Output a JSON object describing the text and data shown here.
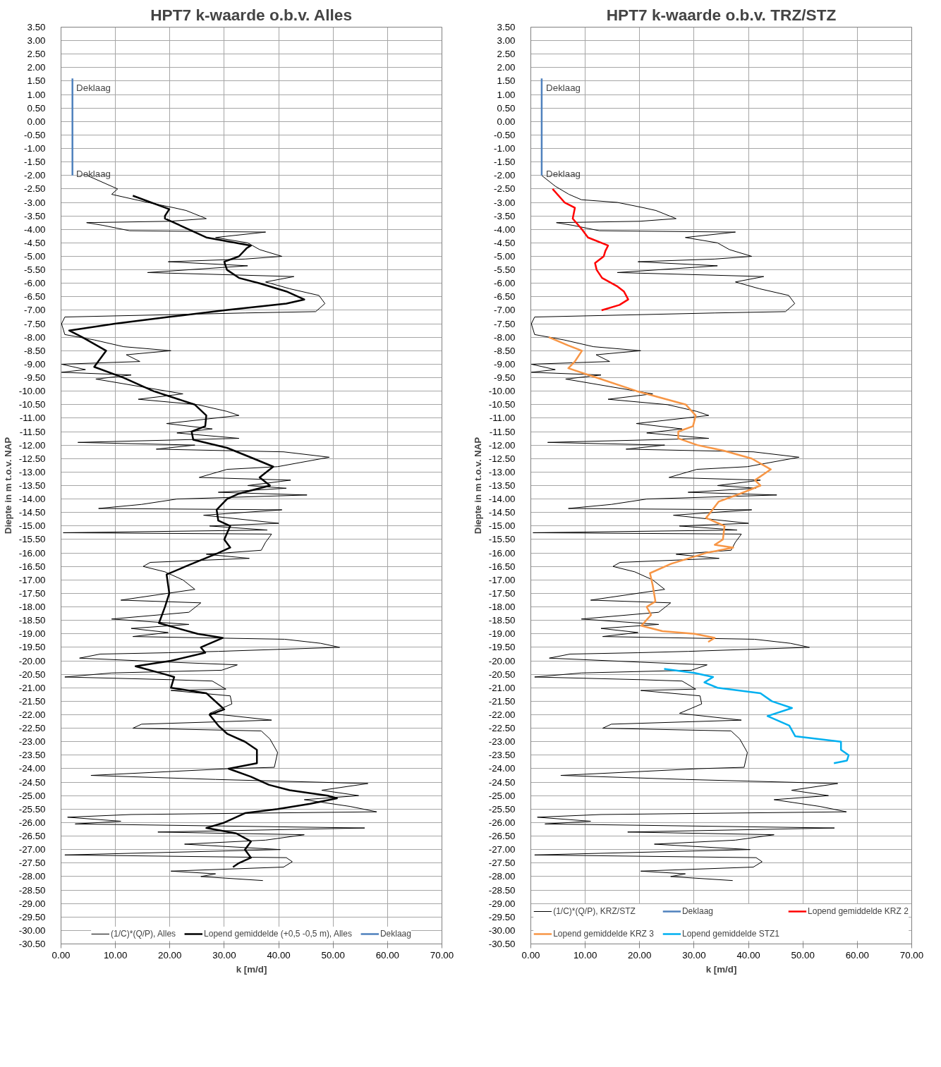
{
  "chart_data": [
    {
      "type": "line",
      "title": "HPT7 k-waarde o.b.v. Alles",
      "xlabel": "k [m/d]",
      "ylabel": "Diepte in m t.o.v. NAP",
      "grid": true,
      "legend": "bottom",
      "line_style": "solid",
      "xlim": [
        0,
        70
      ],
      "ylim": [
        -30.5,
        3.5
      ],
      "xticks": [
        {
          "value": 0,
          "label": "0.00"
        },
        {
          "value": 10,
          "label": "10.00"
        },
        {
          "value": 20,
          "label": "20.00"
        },
        {
          "value": 30,
          "label": "30.00"
        },
        {
          "value": 40,
          "label": "40.00"
        },
        {
          "value": 50,
          "label": "50.00"
        },
        {
          "value": 60,
          "label": "60.00"
        },
        {
          "value": 70,
          "label": "70.00"
        }
      ],
      "yticks": [
        {
          "value": 3.5,
          "label": "3.50"
        },
        {
          "value": 3,
          "label": "3.00"
        },
        {
          "value": 2.5,
          "label": "2.50"
        },
        {
          "value": 2,
          "label": "2.00"
        },
        {
          "value": 1.5,
          "label": "1.50"
        },
        {
          "value": 1,
          "label": "1.00"
        },
        {
          "value": 0.5,
          "label": "0.50"
        },
        {
          "value": 0,
          "label": "0.00"
        },
        {
          "value": -0.5,
          "label": "-0.50"
        },
        {
          "value": -1,
          "label": "-1.00"
        },
        {
          "value": -1.5,
          "label": "-1.50"
        },
        {
          "value": -2,
          "label": "-2.00"
        },
        {
          "value": -2.5,
          "label": "-2.50"
        },
        {
          "value": -3,
          "label": "-3.00"
        },
        {
          "value": -3.5,
          "label": "-3.50"
        },
        {
          "value": -4,
          "label": "-4.00"
        },
        {
          "value": -4.5,
          "label": "-4.50"
        },
        {
          "value": -5,
          "label": "-5.00"
        },
        {
          "value": -5.5,
          "label": "-5.50"
        },
        {
          "value": -6,
          "label": "-6.00"
        },
        {
          "value": -6.5,
          "label": "-6.50"
        },
        {
          "value": -7,
          "label": "-7.00"
        },
        {
          "value": -7.5,
          "label": "-7.50"
        },
        {
          "value": -8,
          "label": "-8.00"
        },
        {
          "value": -8.5,
          "label": "-8.50"
        },
        {
          "value": -9,
          "label": "-9.00"
        },
        {
          "value": -9.5,
          "label": "-9.50"
        },
        {
          "value": -10,
          "label": "-10.00"
        },
        {
          "value": -10.5,
          "label": "-10.50"
        },
        {
          "value": -11,
          "label": "-11.00"
        },
        {
          "value": -11.5,
          "label": "-11.50"
        },
        {
          "value": -12,
          "label": "-12.00"
        },
        {
          "value": -12.5,
          "label": "-12.50"
        },
        {
          "value": -13,
          "label": "-13.00"
        },
        {
          "value": -13.5,
          "label": "-13.50"
        },
        {
          "value": -14,
          "label": "-14.00"
        },
        {
          "value": -14.5,
          "label": "-14.50"
        },
        {
          "value": -15,
          "label": "-15.00"
        },
        {
          "value": -15.5,
          "label": "-15.50"
        },
        {
          "value": -16,
          "label": "-16.00"
        },
        {
          "value": -16.5,
          "label": "-16.50"
        },
        {
          "value": -17,
          "label": "-17.00"
        },
        {
          "value": -17.5,
          "label": "-17.50"
        },
        {
          "value": -18,
          "label": "-18.00"
        },
        {
          "value": -18.5,
          "label": "-18.50"
        },
        {
          "value": -19,
          "label": "-19.00"
        },
        {
          "value": -19.5,
          "label": "-19.50"
        },
        {
          "value": -20,
          "label": "-20.00"
        },
        {
          "value": -20.5,
          "label": "-20.50"
        },
        {
          "value": -21,
          "label": "-21.00"
        },
        {
          "value": -21.5,
          "label": "-21.50"
        },
        {
          "value": -22,
          "label": "-22.00"
        },
        {
          "value": -22.5,
          "label": "-22.50"
        },
        {
          "value": -23,
          "label": "-23.00"
        },
        {
          "value": -23.5,
          "label": "-23.50"
        },
        {
          "value": -24,
          "label": "-24.00"
        },
        {
          "value": -24.5,
          "label": "-24.50"
        },
        {
          "value": -25,
          "label": "-25.00"
        },
        {
          "value": -25.5,
          "label": "-25.50"
        },
        {
          "value": -26,
          "label": "-26.00"
        },
        {
          "value": -26.5,
          "label": "-26.50"
        },
        {
          "value": -27,
          "label": "-27.00"
        },
        {
          "value": -27.5,
          "label": "-27.50"
        },
        {
          "value": -28,
          "label": "-28.00"
        },
        {
          "value": -28.5,
          "label": "-28.50"
        },
        {
          "value": -29,
          "label": "-29.00"
        },
        {
          "value": -29.5,
          "label": "-29.50"
        },
        {
          "value": -30,
          "label": "-30.00"
        },
        {
          "value": -30.5,
          "label": "-30.50"
        }
      ],
      "annotations": [
        "Deklaag",
        "Deklaag"
      ],
      "series": [
        {
          "name": "(1/C)*(Q/P), Alles",
          "color": "#000000",
          "x": [
            4.8,
            10.4,
            9.3,
            15.9,
            20.8,
            23,
            26.7,
            20,
            4.7,
            7.7,
            12.6,
            37.6,
            28.4,
            34.3,
            36.5,
            40.6,
            33.8,
            19.7,
            34.3,
            15.9,
            42.8,
            37.6,
            42,
            47.4,
            48.5,
            46.8,
            33.8,
            0.7,
            0.1,
            0.7,
            6.1,
            11.5,
            20.2,
            12,
            14.5,
            0.1,
            4.5,
            0.1,
            12.9,
            6.4,
            22.4,
            14.2,
            25.1,
            30.5,
            32.7,
            19.4,
            27.8,
            21.3,
            32.7,
            3.1,
            24.6,
            17.5,
            40.9,
            49.3,
            39.8,
            30.5,
            25.4,
            42.2,
            34.3,
            41.4,
            28.9,
            45.2,
            21.3,
            14.8,
            6.9,
            40.6,
            26.2,
            40,
            27.3,
            37.9,
            0.4,
            38.7,
            37.6,
            36.8,
            26.7,
            34.6,
            16.4,
            15.1,
            19.1,
            22.4,
            24.6,
            11,
            25.7,
            23.5,
            9.3,
            23.5,
            12.9,
            19.7,
            13.2,
            41.1,
            47.7,
            51.2,
            28.9,
            19.7,
            7.2,
            3.4,
            20.2,
            32.4,
            29.5,
            9.3,
            0.7,
            20.2,
            27.8,
            30.3,
            20.2,
            31.1,
            31.4,
            27.3,
            38.7,
            14.8,
            13.2,
            36.8,
            38.4,
            39.8,
            39.2,
            30.8,
            5.5,
            28.4,
            56.4,
            47.9,
            54.7,
            44.7,
            53.1,
            58,
            12.9,
            1.2,
            11,
            2.6,
            55.8,
            17.8,
            44.7,
            37.6,
            22.7,
            40.3,
            0.7,
            41.4,
            42.5,
            40.9,
            20.2,
            28.4,
            25.7,
            37.1
          ],
          "values": [
            -2.0,
            -2.5,
            -2.7,
            -3.0,
            -3.2,
            -3.3,
            -3.6,
            -3.7,
            -3.75,
            -3.85,
            -4.05,
            -4.1,
            -4.3,
            -4.5,
            -4.75,
            -5.0,
            -5.1,
            -5.2,
            -5.35,
            -5.6,
            -5.75,
            -5.95,
            -6.2,
            -6.45,
            -6.75,
            -7.05,
            -7.1,
            -7.25,
            -7.5,
            -7.9,
            -8.1,
            -8.35,
            -8.5,
            -8.65,
            -8.9,
            -9.0,
            -9.2,
            -9.3,
            -9.4,
            -9.55,
            -10.1,
            -10.3,
            -10.5,
            -10.75,
            -10.9,
            -11.2,
            -11.4,
            -11.55,
            -11.75,
            -11.9,
            -12.0,
            -12.15,
            -12.25,
            -12.45,
            -12.8,
            -12.9,
            -13.2,
            -13.3,
            -13.5,
            -13.6,
            -13.75,
            -13.85,
            -14.0,
            -14.2,
            -14.35,
            -14.4,
            -14.6,
            -14.9,
            -15.0,
            -15.15,
            -15.25,
            -15.3,
            -15.6,
            -15.9,
            -16.05,
            -16.2,
            -16.35,
            -16.5,
            -16.7,
            -17.0,
            -17.35,
            -17.75,
            -17.85,
            -18.2,
            -18.45,
            -18.65,
            -18.8,
            -18.95,
            -19.1,
            -19.2,
            -19.35,
            -19.5,
            -19.65,
            -19.7,
            -19.75,
            -19.9,
            -20.05,
            -20.15,
            -20.35,
            -20.45,
            -20.6,
            -20.7,
            -20.75,
            -21.05,
            -21.1,
            -21.3,
            -21.6,
            -21.95,
            -22.2,
            -22.35,
            -22.5,
            -22.6,
            -22.9,
            -23.4,
            -23.95,
            -24.0,
            -24.25,
            -24.4,
            -24.55,
            -24.8,
            -25.0,
            -25.15,
            -25.4,
            -25.6,
            -25.7,
            -25.8,
            -25.95,
            -26.05,
            -26.2,
            -26.35,
            -26.45,
            -26.65,
            -26.8,
            -27.0,
            -27.2,
            -27.3,
            -27.45,
            -27.65,
            -27.8,
            -27.9,
            -28.0,
            -28.15
          ]
        },
        {
          "name": "Lopend gemiddelde (+0,5 -0,5 m), Alles",
          "color": "#000000",
          "x": [
            13.2,
            19.9,
            19.1,
            19.1,
            23.5,
            26.7,
            34.9,
            34.1,
            32.7,
            30,
            30.5,
            32.7,
            36.5,
            41.4,
            44.7,
            41.4,
            30,
            19.7,
            9.9,
            1.5,
            3.9,
            8.3,
            7.2,
            6.1,
            11.5,
            17,
            24.6,
            26.7,
            26.5,
            24,
            24.3,
            30.5,
            35.4,
            39,
            36.5,
            38.4,
            32.7,
            30.5,
            28.6,
            28.9,
            31.1,
            30,
            31.1,
            28.9,
            22.9,
            19.4,
            19.9,
            19.1,
            18,
            25.1,
            29.7,
            25.7,
            26.5,
            20.2,
            13.7,
            19.1,
            20.8,
            20.2,
            26.7,
            28.9,
            30,
            27.3,
            28.9,
            30.5,
            33.8,
            36,
            36,
            30.8,
            34.9,
            38.2,
            42,
            49,
            50.7,
            45.8,
            39.8,
            33.8,
            30,
            26.7,
            32.2,
            34.9,
            33.8,
            34.9,
            32.7,
            31.6
          ],
          "values": [
            -2.75,
            -3.25,
            -3.5,
            -3.6,
            -4.0,
            -4.3,
            -4.6,
            -4.7,
            -5.0,
            -5.2,
            -5.5,
            -5.8,
            -6.0,
            -6.3,
            -6.6,
            -6.75,
            -7.0,
            -7.25,
            -7.5,
            -7.75,
            -8.0,
            -8.5,
            -8.8,
            -9.1,
            -9.5,
            -10.0,
            -10.5,
            -10.9,
            -11.3,
            -11.5,
            -11.8,
            -12.1,
            -12.5,
            -12.8,
            -13.2,
            -13.5,
            -13.8,
            -14.0,
            -14.4,
            -14.8,
            -15.0,
            -15.5,
            -15.8,
            -16.0,
            -16.5,
            -16.8,
            -17.5,
            -18.0,
            -18.6,
            -19.0,
            -19.15,
            -19.5,
            -19.7,
            -20.0,
            -20.2,
            -20.5,
            -20.6,
            -21.0,
            -21.2,
            -21.6,
            -21.8,
            -22.0,
            -22.4,
            -22.7,
            -23.0,
            -23.3,
            -23.8,
            -24.0,
            -24.3,
            -24.6,
            -24.8,
            -25.0,
            -25.1,
            -25.3,
            -25.5,
            -25.65,
            -26.0,
            -26.2,
            -26.4,
            -26.7,
            -27.0,
            -27.3,
            -27.5,
            -27.65
          ]
        },
        {
          "name": "Deklaag",
          "color": "#4f81bd",
          "x": [
            2.1,
            2.1
          ],
          "values": [
            1.6,
            -2.0
          ]
        }
      ]
    },
    {
      "type": "line",
      "title": "HPT7 k-waarde o.b.v. TRZ/STZ",
      "xlabel": "k [m/d]",
      "ylabel": "Diepte in m t.o.v. NAP",
      "grid": true,
      "legend": "bottom",
      "line_style": "solid",
      "xlim": [
        0,
        70
      ],
      "ylim": [
        -30.5,
        3.5
      ],
      "xticks": [
        {
          "value": 0,
          "label": "0.00"
        },
        {
          "value": 10,
          "label": "10.00"
        },
        {
          "value": 20,
          "label": "20.00"
        },
        {
          "value": 30,
          "label": "30.00"
        },
        {
          "value": 40,
          "label": "40.00"
        },
        {
          "value": 50,
          "label": "50.00"
        },
        {
          "value": 60,
          "label": "60.00"
        },
        {
          "value": 70,
          "label": "70.00"
        }
      ],
      "yticks": [
        {
          "value": 3.5,
          "label": "3.50"
        },
        {
          "value": 3,
          "label": "3.00"
        },
        {
          "value": 2.5,
          "label": "2.50"
        },
        {
          "value": 2,
          "label": "2.00"
        },
        {
          "value": 1.5,
          "label": "1.50"
        },
        {
          "value": 1,
          "label": "1.00"
        },
        {
          "value": 0.5,
          "label": "0.50"
        },
        {
          "value": 0,
          "label": "0.00"
        },
        {
          "value": -0.5,
          "label": "-0.50"
        },
        {
          "value": -1,
          "label": "-1.00"
        },
        {
          "value": -1.5,
          "label": "-1.50"
        },
        {
          "value": -2,
          "label": "-2.00"
        },
        {
          "value": -2.5,
          "label": "-2.50"
        },
        {
          "value": -3,
          "label": "-3.00"
        },
        {
          "value": -3.5,
          "label": "-3.50"
        },
        {
          "value": -4,
          "label": "-4.00"
        },
        {
          "value": -4.5,
          "label": "-4.50"
        },
        {
          "value": -5,
          "label": "-5.00"
        },
        {
          "value": -5.5,
          "label": "-5.50"
        },
        {
          "value": -6,
          "label": "-6.00"
        },
        {
          "value": -6.5,
          "label": "-6.50"
        },
        {
          "value": -7,
          "label": "-7.00"
        },
        {
          "value": -7.5,
          "label": "-7.50"
        },
        {
          "value": -8,
          "label": "-8.00"
        },
        {
          "value": -8.5,
          "label": "-8.50"
        },
        {
          "value": -9,
          "label": "-9.00"
        },
        {
          "value": -9.5,
          "label": "-9.50"
        },
        {
          "value": -10,
          "label": "-10.00"
        },
        {
          "value": -10.5,
          "label": "-10.50"
        },
        {
          "value": -11,
          "label": "-11.00"
        },
        {
          "value": -11.5,
          "label": "-11.50"
        },
        {
          "value": -12,
          "label": "-12.00"
        },
        {
          "value": -12.5,
          "label": "-12.50"
        },
        {
          "value": -13,
          "label": "-13.00"
        },
        {
          "value": -13.5,
          "label": "-13.50"
        },
        {
          "value": -14,
          "label": "-14.00"
        },
        {
          "value": -14.5,
          "label": "-14.50"
        },
        {
          "value": -15,
          "label": "-15.00"
        },
        {
          "value": -15.5,
          "label": "-15.50"
        },
        {
          "value": -16,
          "label": "-16.00"
        },
        {
          "value": -16.5,
          "label": "-16.50"
        },
        {
          "value": -17,
          "label": "-17.00"
        },
        {
          "value": -17.5,
          "label": "-17.50"
        },
        {
          "value": -18,
          "label": "-18.00"
        },
        {
          "value": -18.5,
          "label": "-18.50"
        },
        {
          "value": -19,
          "label": "-19.00"
        },
        {
          "value": -19.5,
          "label": "-19.50"
        },
        {
          "value": -20,
          "label": "-20.00"
        },
        {
          "value": -20.5,
          "label": "-20.50"
        },
        {
          "value": -21,
          "label": "-21.00"
        },
        {
          "value": -21.5,
          "label": "-21.50"
        },
        {
          "value": -22,
          "label": "-22.00"
        },
        {
          "value": -22.5,
          "label": "-22.50"
        },
        {
          "value": -23,
          "label": "-23.00"
        },
        {
          "value": -23.5,
          "label": "-23.50"
        },
        {
          "value": -24,
          "label": "-24.00"
        },
        {
          "value": -24.5,
          "label": "-24.50"
        },
        {
          "value": -25,
          "label": "-25.00"
        },
        {
          "value": -25.5,
          "label": "-25.50"
        },
        {
          "value": -26,
          "label": "-26.00"
        },
        {
          "value": -26.5,
          "label": "-26.50"
        },
        {
          "value": -27,
          "label": "-27.00"
        },
        {
          "value": -27.5,
          "label": "-27.50"
        },
        {
          "value": -28,
          "label": "-28.00"
        },
        {
          "value": -28.5,
          "label": "-28.50"
        },
        {
          "value": -29,
          "label": "-29.00"
        },
        {
          "value": -29.5,
          "label": "-29.50"
        },
        {
          "value": -30,
          "label": "-30.00"
        },
        {
          "value": -30.5,
          "label": "-30.50"
        }
      ],
      "annotations": [
        "Deklaag",
        "Deklaag"
      ],
      "series": [
        {
          "name": "(1/C)*(Q/P), KRZ/STZ",
          "color": "#000000",
          "x": [
            2.0,
            4.5,
            7,
            9.3,
            15.9,
            20.8,
            23,
            26.7,
            20,
            4.7,
            7.7,
            12.6,
            37.6,
            28.4,
            34.3,
            36.5,
            40.6,
            33.8,
            19.7,
            34.3,
            15.9,
            42.8,
            37.6,
            42,
            47.4,
            48.5,
            46.8,
            33.8,
            0.7,
            0.1,
            0.7,
            6.1,
            11.5,
            20.2,
            12,
            14.5,
            0.1,
            4.5,
            0.1,
            12.9,
            6.4,
            22.4,
            14.2,
            25.1,
            30.5,
            32.7,
            19.4,
            27.8,
            21.3,
            32.7,
            3.1,
            24.6,
            17.5,
            40.9,
            49.3,
            39.8,
            30.5,
            25.4,
            42.2,
            34.3,
            41.4,
            28.9,
            45.2,
            21.3,
            14.8,
            6.9,
            40.6,
            26.2,
            40,
            27.3,
            37.9,
            0.4,
            38.7,
            37.6,
            36.8,
            26.7,
            34.6,
            16.4,
            15.1,
            19.1,
            22.4,
            24.6,
            11,
            25.7,
            23.5,
            9.3,
            23.5,
            12.9,
            19.7,
            13.2,
            41.1,
            47.7,
            51.2,
            28.9,
            19.7,
            7.2,
            3.4,
            20.2,
            32.4,
            29.5,
            9.3,
            0.7,
            20.2,
            27.8,
            30.3,
            20.2,
            31.1,
            31.4,
            27.3,
            38.7,
            14.8,
            13.2,
            36.8,
            38.4,
            39.8,
            39.2,
            30.8,
            5.5,
            28.4,
            56.4,
            47.9,
            54.7,
            44.7,
            53.1,
            58,
            12.9,
            1.2,
            11,
            2.6,
            55.8,
            17.8,
            44.7,
            37.6,
            22.7,
            40.3,
            0.7,
            41.4,
            42.5,
            40.9,
            20.2,
            28.4,
            25.7,
            37.1
          ],
          "values": [
            -2.0,
            -2.4,
            -2.7,
            -2.9,
            -3.0,
            -3.2,
            -3.3,
            -3.6,
            -3.7,
            -3.75,
            -3.85,
            -4.05,
            -4.1,
            -4.3,
            -4.5,
            -4.75,
            -5.0,
            -5.1,
            -5.2,
            -5.35,
            -5.6,
            -5.75,
            -5.95,
            -6.2,
            -6.45,
            -6.75,
            -7.05,
            -7.1,
            -7.25,
            -7.5,
            -7.9,
            -8.1,
            -8.35,
            -8.5,
            -8.65,
            -8.9,
            -9.0,
            -9.2,
            -9.3,
            -9.4,
            -9.55,
            -10.1,
            -10.3,
            -10.5,
            -10.75,
            -10.9,
            -11.2,
            -11.4,
            -11.55,
            -11.75,
            -11.9,
            -12.0,
            -12.15,
            -12.25,
            -12.45,
            -12.8,
            -12.9,
            -13.2,
            -13.3,
            -13.5,
            -13.6,
            -13.75,
            -13.85,
            -14.0,
            -14.2,
            -14.35,
            -14.4,
            -14.6,
            -14.9,
            -15.0,
            -15.15,
            -15.25,
            -15.3,
            -15.6,
            -15.9,
            -16.05,
            -16.2,
            -16.35,
            -16.5,
            -16.7,
            -17.0,
            -17.35,
            -17.75,
            -17.85,
            -18.2,
            -18.45,
            -18.65,
            -18.8,
            -18.95,
            -19.1,
            -19.2,
            -19.35,
            -19.5,
            -19.65,
            -19.7,
            -19.75,
            -19.9,
            -20.05,
            -20.15,
            -20.35,
            -20.45,
            -20.6,
            -20.7,
            -20.75,
            -21.05,
            -21.1,
            -21.3,
            -21.6,
            -21.95,
            -22.2,
            -22.35,
            -22.5,
            -22.6,
            -22.9,
            -23.4,
            -23.95,
            -24.0,
            -24.25,
            -24.4,
            -24.55,
            -24.8,
            -25.0,
            -25.15,
            -25.4,
            -25.6,
            -25.7,
            -25.8,
            -25.95,
            -26.05,
            -26.2,
            -26.35,
            -26.45,
            -26.65,
            -26.8,
            -27.0,
            -27.2,
            -27.3,
            -27.45,
            -27.65,
            -27.8,
            -27.9,
            -28.0,
            -28.15
          ]
        },
        {
          "name": "Deklaag",
          "color": "#4f81bd",
          "x": [
            2.0,
            2.0
          ],
          "values": [
            1.6,
            -2.0
          ]
        },
        {
          "name": "Lopend gemiddelde KRZ 2",
          "color": "#ff0000",
          "x": [
            4.0,
            6.2,
            8.1,
            7.7,
            9.4,
            10.5,
            14.2,
            13.7,
            13.4,
            11.8,
            12.1,
            13.1,
            15.8,
            17.1,
            17.9,
            16.3,
            13.0
          ],
          "values": [
            -2.5,
            -3.0,
            -3.2,
            -3.6,
            -4.0,
            -4.3,
            -4.6,
            -4.8,
            -5.0,
            -5.25,
            -5.5,
            -5.8,
            -6.1,
            -6.3,
            -6.6,
            -6.8,
            -7.0
          ]
        },
        {
          "name": "Lopend gemiddelde KRZ 3",
          "color": "#f79646",
          "x": [
            3.3,
            6.8,
            9.4,
            8.1,
            6.9,
            12.1,
            19.5,
            28.5,
            30.3,
            29.8,
            27.1,
            27.1,
            30.6,
            35.3,
            40.6,
            44.1,
            41.2,
            42.2,
            38.5,
            34.5,
            33.0,
            32.2,
            35.6,
            35.3,
            33.8,
            37.2,
            32.2,
            25.8,
            21.9,
            22.4,
            22.9,
            21.3,
            22.1,
            20.3,
            24.2,
            30.1,
            33.8,
            32.6
          ],
          "values": [
            -8.0,
            -8.3,
            -8.5,
            -8.9,
            -9.15,
            -9.5,
            -10.0,
            -10.5,
            -10.9,
            -11.3,
            -11.5,
            -11.75,
            -12.0,
            -12.2,
            -12.5,
            -12.9,
            -13.3,
            -13.5,
            -13.8,
            -14.1,
            -14.5,
            -14.7,
            -15.0,
            -15.5,
            -15.7,
            -15.8,
            -16.0,
            -16.4,
            -16.75,
            -17.2,
            -17.8,
            -18.0,
            -18.3,
            -18.7,
            -18.9,
            -19.0,
            -19.15,
            -19.3
          ]
        },
        {
          "name": "Lopend gemiddelde STZ1",
          "color": "#00b0f0",
          "x": [
            24.5,
            30.1,
            33.5,
            31.9,
            34.3,
            42.2,
            44.3,
            48.0,
            43.5,
            47.5,
            48.6,
            57.0,
            57.0,
            58.4,
            58.1,
            55.7
          ],
          "values": [
            -20.3,
            -20.45,
            -20.6,
            -20.8,
            -21.0,
            -21.2,
            -21.5,
            -21.75,
            -22.05,
            -22.4,
            -22.8,
            -23.0,
            -23.3,
            -23.5,
            -23.7,
            -23.8
          ]
        }
      ]
    }
  ]
}
